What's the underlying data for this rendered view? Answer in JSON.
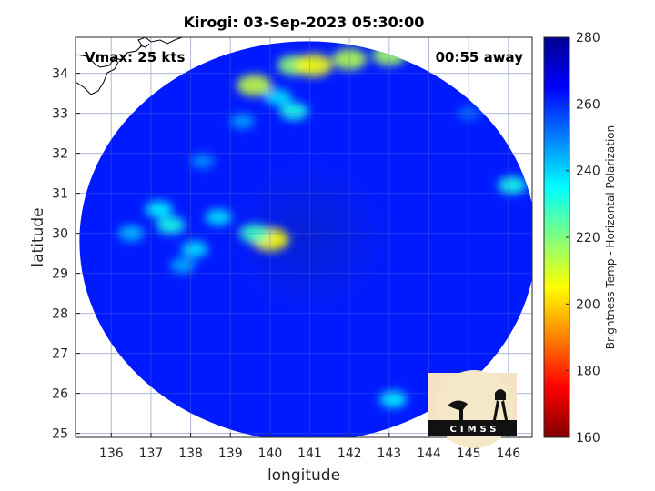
{
  "chart_data": {
    "type": "heatmap",
    "title": "Kirogi: 03-Sep-2023 05:30:00",
    "xlabel": "longitude",
    "ylabel": "latitude",
    "xlim": [
      135.1,
      146.6
    ],
    "ylim": [
      24.9,
      34.9
    ],
    "xticks": [
      136,
      137,
      138,
      139,
      140,
      141,
      142,
      143,
      144,
      145,
      146
    ],
    "yticks": [
      25,
      26,
      27,
      28,
      29,
      30,
      31,
      32,
      33,
      34
    ],
    "grid": true,
    "swath": {
      "center": [
        140.95,
        29.8
      ],
      "radius_deg_lon": 5.75,
      "radius_deg_lat": 5.0
    },
    "storm_center": [
      141.0,
      29.9
    ],
    "background_value": 262,
    "features": [
      {
        "lon": 140.0,
        "lat": 29.85,
        "value": 205
      },
      {
        "lon": 139.6,
        "lat": 30.0,
        "value": 228
      },
      {
        "lon": 137.5,
        "lat": 30.2,
        "value": 232
      },
      {
        "lon": 137.2,
        "lat": 30.6,
        "value": 236
      },
      {
        "lon": 138.1,
        "lat": 29.6,
        "value": 238
      },
      {
        "lon": 138.7,
        "lat": 30.4,
        "value": 238
      },
      {
        "lon": 136.5,
        "lat": 30.0,
        "value": 242
      },
      {
        "lon": 137.8,
        "lat": 29.2,
        "value": 244
      },
      {
        "lon": 139.6,
        "lat": 33.7,
        "value": 212
      },
      {
        "lon": 140.6,
        "lat": 34.2,
        "value": 218
      },
      {
        "lon": 141.1,
        "lat": 34.2,
        "value": 206
      },
      {
        "lon": 142.0,
        "lat": 34.35,
        "value": 214
      },
      {
        "lon": 143.0,
        "lat": 34.45,
        "value": 216
      },
      {
        "lon": 140.2,
        "lat": 33.4,
        "value": 238
      },
      {
        "lon": 140.6,
        "lat": 33.05,
        "value": 232
      },
      {
        "lon": 139.3,
        "lat": 32.8,
        "value": 246
      },
      {
        "lon": 143.1,
        "lat": 25.85,
        "value": 236
      },
      {
        "lon": 146.1,
        "lat": 31.2,
        "value": 232
      },
      {
        "lon": 145.0,
        "lat": 33.0,
        "value": 252
      },
      {
        "lon": 138.3,
        "lat": 31.8,
        "value": 248
      }
    ],
    "colorbar": {
      "min": 160,
      "max": 280,
      "ticks": [
        160,
        180,
        200,
        220,
        240,
        260,
        280
      ],
      "label": "Brightness Temp - Horizontal Polarization",
      "colormap": "jet"
    },
    "annotations": {
      "vmax": "Vmax: 25 kts",
      "away": "00:55 away"
    }
  },
  "logo": {
    "text": "CIMSS"
  }
}
